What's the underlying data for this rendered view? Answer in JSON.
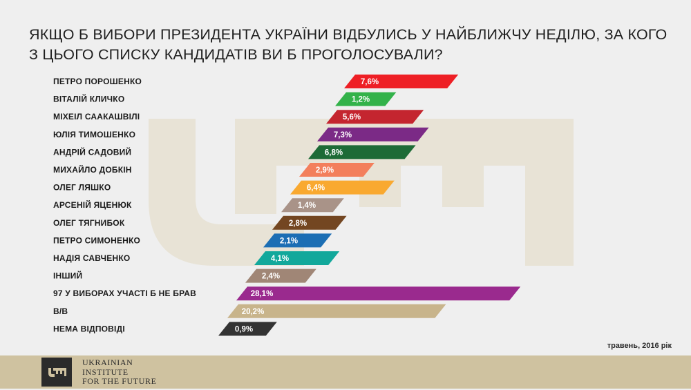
{
  "title": {
    "line1": "ЯКЩО Б ВИБОРИ ПРЕЗИДЕНТА УКРАЇНИ ВІДБУЛИСЬ У НАЙБЛИЖЧУ НЕДІЛЮ, ЗА КОГО",
    "line2": "З ЦЬОГО СПИСКУ КАНДИДАТІВ ВИ Б ПРОГОЛОСУВАЛИ?"
  },
  "date_note": "травень, 2016 рік",
  "logo": {
    "line1": "UKRAINIAN",
    "line2": "INSTITUTE",
    "line3": "FOR THE FUTURE",
    "icon": "key-logo-icon"
  },
  "chart_data": {
    "type": "bar",
    "orientation": "horizontal",
    "title": "ЯКЩО Б ВИБОРИ ПРЕЗИДЕНТА УКРАЇНИ ВІДБУЛИСЬ У НАЙБЛИЖЧУ НЕДІЛЮ, ЗА КОГО З ЦЬОГО СПИСКУ КАНДИДАТІВ ВИ Б ПРОГОЛОСУВАЛИ?",
    "categories": [
      "ПЕТРО ПОРОШЕНКО",
      "ВІТАЛІЙ КЛИЧКО",
      "МІХЕІЛ СААКАШВІЛІ",
      "ЮЛІЯ ТИМОШЕНКО",
      "АНДРІЙ САДОВИЙ",
      "МИХАЙЛО ДОБКІН",
      "ОЛЕГ ЛЯШКО",
      "АРСЕНІЙ ЯЦЕНЮК",
      "ОЛЕГ ТЯГНИБОК",
      "ПЕТРО СИМОНЕНКО",
      "НАДІЯ САВЧЕНКО",
      "ІНШИЙ",
      "97 У ВИБОРАХ УЧАСТІ Б НЕ БРАВ",
      "В/В",
      "НЕМА ВІДПОВІДІ"
    ],
    "values": [
      7.6,
      1.2,
      5.6,
      7.3,
      6.8,
      2.9,
      6.4,
      1.4,
      2.8,
      2.1,
      4.1,
      2.4,
      28.1,
      20.2,
      0.9
    ],
    "value_labels": [
      "7,6%",
      "1,2%",
      "5,6%",
      "7,3%",
      "6,8%",
      "2,9%",
      "6,4%",
      "1,4%",
      "2,8%",
      "2,1%",
      "4,1%",
      "2,4%",
      "28,1%",
      "20,2%",
      "0,9%"
    ],
    "colors": [
      "#ee1f25",
      "#33b24a",
      "#c4252f",
      "#7b2a86",
      "#1d6b36",
      "#f37f5c",
      "#f9a930",
      "#a99388",
      "#734621",
      "#1c6eb4",
      "#12a89b",
      "#a08676",
      "#9a2a8e",
      "#c8b48b",
      "#333333"
    ],
    "unit": "%",
    "legend": "none"
  }
}
